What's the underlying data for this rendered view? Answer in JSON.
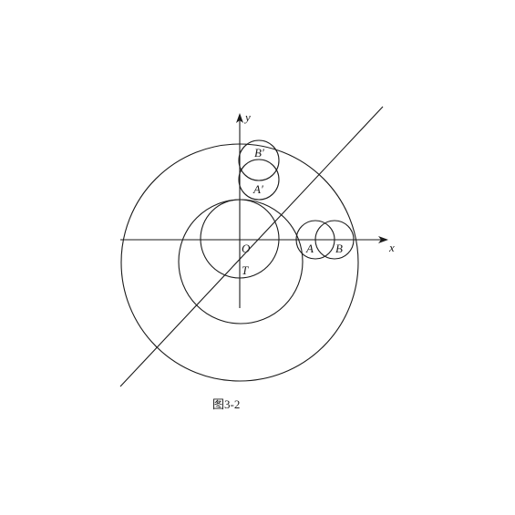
{
  "diagram": {
    "caption": "图3-2",
    "axis_x_label": "x",
    "axis_y_label": "y",
    "points": {
      "origin": "O",
      "t": "T",
      "a": "A",
      "b": "B",
      "a_prime": "A′",
      "b_prime": "B′"
    }
  }
}
